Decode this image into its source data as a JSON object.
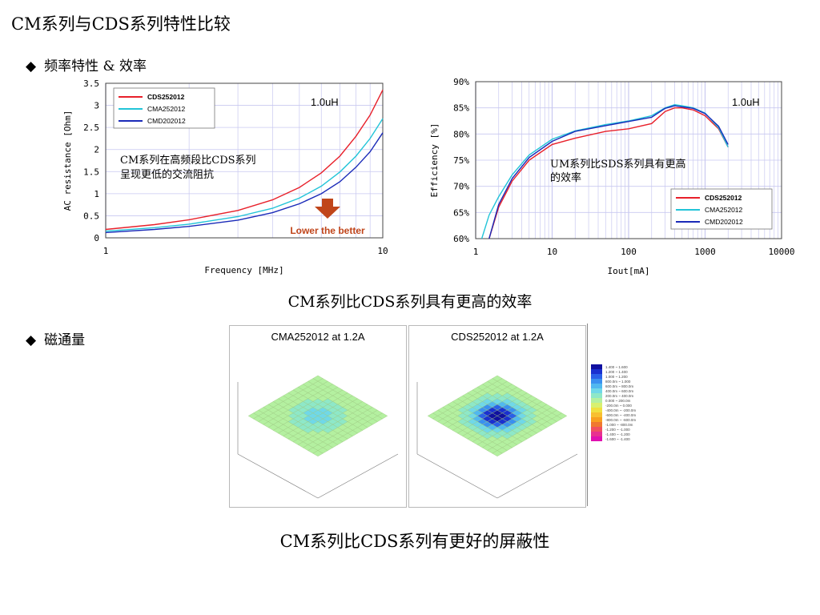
{
  "page": {
    "title": "CM系列与CDS系列特性比较",
    "section1": "频率特性 & 效率",
    "section2": "磁通量",
    "bullet_mark": "◆",
    "caption1": "CM系列比CDS系列具有更高的效率",
    "caption2": "CM系列比CDS系列有更好的屏蔽性"
  },
  "colors": {
    "cds": "#e8202a",
    "cma": "#22c4d8",
    "cmd": "#1a2ab8",
    "arrow": "#c0451a",
    "grid": "#c8c8f0"
  },
  "chart_data": [
    {
      "type": "line",
      "xlabel": "Frequency [MHz]",
      "ylabel": "AC resistance [Ohm]",
      "xscale": "log",
      "xlim": [
        1,
        10
      ],
      "ylim": [
        0,
        3.5
      ],
      "xticks": [
        "1",
        "10"
      ],
      "yticks": [
        "0",
        "0.5",
        "1",
        "1.5",
        "2",
        "2.5",
        "3",
        "3.5"
      ],
      "annotation": "1.0uH",
      "note": "CM系列在高频段比CDS系列呈现更低的交流阻抗",
      "arrow_label": "Lower the better",
      "legend_position": "top-left",
      "series": [
        {
          "name": "CDS252012",
          "color_key": "cds",
          "x": [
            1,
            1.5,
            2,
            3,
            4,
            5,
            6,
            7,
            8,
            9,
            10
          ],
          "y": [
            0.19,
            0.3,
            0.41,
            0.62,
            0.86,
            1.14,
            1.47,
            1.85,
            2.3,
            2.78,
            3.35
          ]
        },
        {
          "name": "CMA252012",
          "color_key": "cma",
          "x": [
            1,
            1.5,
            2,
            3,
            4,
            5,
            6,
            7,
            8,
            9,
            10
          ],
          "y": [
            0.15,
            0.23,
            0.31,
            0.48,
            0.67,
            0.9,
            1.17,
            1.49,
            1.85,
            2.25,
            2.7
          ]
        },
        {
          "name": "CMD202012",
          "color_key": "cmd",
          "x": [
            1,
            1.5,
            2,
            3,
            4,
            5,
            6,
            7,
            8,
            9,
            10
          ],
          "y": [
            0.12,
            0.19,
            0.26,
            0.4,
            0.57,
            0.77,
            1.0,
            1.27,
            1.6,
            1.95,
            2.38
          ]
        }
      ]
    },
    {
      "type": "line",
      "xlabel": "Iout[mA]",
      "ylabel": "Efficiency [%]",
      "xscale": "log",
      "xlim": [
        1,
        10000
      ],
      "ylim": [
        60,
        90
      ],
      "xticks": [
        "1",
        "10",
        "100",
        "1000",
        "10000"
      ],
      "yticks": [
        "60%",
        "65%",
        "70%",
        "75%",
        "80%",
        "85%",
        "90%"
      ],
      "annotation": "1.0uH",
      "note": "UM系列比SDS系列具有更高的效率",
      "legend_position": "bottom-right",
      "series": [
        {
          "name": "CDS252012",
          "color_key": "cds",
          "x": [
            1.5,
            2,
            3,
            5,
            10,
            20,
            50,
            100,
            200,
            300,
            400,
            500,
            700,
            1000,
            1500,
            2000
          ],
          "y": [
            60,
            66,
            71,
            75,
            78,
            79.2,
            80.5,
            81,
            82,
            84.3,
            85,
            85,
            84.6,
            83.5,
            81,
            77.5
          ]
        },
        {
          "name": "CMA252012",
          "color_key": "cma",
          "x": [
            1.2,
            1.5,
            2,
            3,
            5,
            10,
            20,
            50,
            100,
            200,
            300,
            400,
            500,
            700,
            1000,
            1500,
            2000
          ],
          "y": [
            60,
            64.5,
            68,
            72.2,
            76,
            79,
            80.6,
            81.8,
            82.5,
            83.5,
            85,
            85.6,
            85.4,
            85,
            84,
            81.2,
            77.5
          ]
        },
        {
          "name": "CMD202012",
          "color_key": "cmd",
          "x": [
            1.5,
            2,
            3,
            5,
            10,
            20,
            50,
            100,
            200,
            300,
            400,
            500,
            700,
            1000,
            1500,
            2000
          ],
          "y": [
            60,
            66.5,
            71.5,
            75.5,
            78.6,
            80.5,
            81.6,
            82.4,
            83.2,
            84.9,
            85.4,
            85.2,
            84.9,
            83.9,
            81.5,
            78
          ]
        }
      ]
    }
  ],
  "flux": {
    "panel1_title": "CMA252012 at 1.2A",
    "panel2_title": "CDS252012 at 1.2A",
    "legend_values": [
      "1.400 ~ 1.600",
      "1.200 ~ 1.400",
      "1.000 ~ 1.200",
      "800.0m ~ 1.000",
      "600.0m ~ 800.0m",
      "400.0m ~ 600.0m",
      "200.0m ~ 400.0m",
      "0.000 ~ 200.0m",
      "-200.0m ~ 0.000",
      "-400.0m ~ -200.0m",
      "-600.0m ~ -400.0m",
      "-800.0m ~ -600.0m",
      "-1.000 ~ -800.0m",
      "-1.200 ~ -1.000",
      "-1.400 ~ -1.200",
      "-1.600 ~ -1.400"
    ],
    "legend_colors": [
      "#1010a0",
      "#1a30d0",
      "#2a60e8",
      "#3a90f0",
      "#50b8f0",
      "#70d8e8",
      "#8ee8c8",
      "#b4f0a0",
      "#d8f070",
      "#f0e040",
      "#f8c030",
      "#f8a020",
      "#f07830",
      "#f05060",
      "#e83090",
      "#e010b0"
    ]
  }
}
